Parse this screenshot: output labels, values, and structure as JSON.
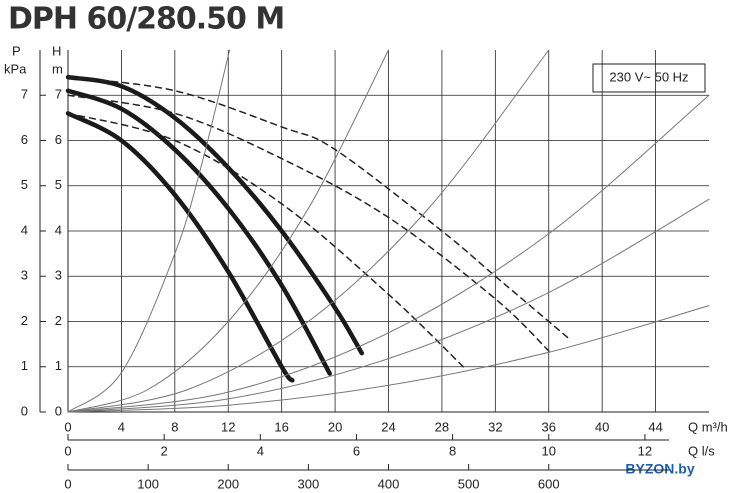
{
  "chart_data": {
    "type": "line",
    "title": "DPH 60/280.50 M",
    "legend_text": "230 V~ 50 Hz",
    "watermark": "BYZON.by",
    "x_label": "Q m³/h",
    "x2_label": "Q l/s",
    "y_label": "H",
    "y_unit": "m",
    "y2_label": "P",
    "y2_unit": "kPa",
    "xlim": [
      0,
      48
    ],
    "xticks": [
      0,
      4,
      8,
      12,
      16,
      20,
      24,
      28,
      32,
      36,
      40,
      44
    ],
    "x2lim": [
      0,
      13.333
    ],
    "x2ticks": [
      0,
      2,
      4,
      6,
      8,
      10,
      12
    ],
    "x3lim": [
      0,
      800
    ],
    "x3ticks": [
      0,
      100,
      200,
      300,
      400,
      500,
      600
    ],
    "ylim": [
      0,
      8
    ],
    "yticks": [
      0,
      1,
      2,
      3,
      4,
      5,
      6,
      7
    ],
    "y2lim": [
      0,
      8
    ],
    "y2ticks": [
      0,
      1,
      2,
      3,
      4,
      5,
      6,
      7
    ],
    "grid": true,
    "series": [
      {
        "style": "solid",
        "color": "#1a1a1a",
        "x": [
          0,
          4,
          8,
          12,
          16,
          16.8
        ],
        "values": [
          6.6,
          6.0,
          4.8,
          3.1,
          1.0,
          0.7
        ]
      },
      {
        "style": "solid",
        "color": "#1a1a1a",
        "x": [
          0,
          4,
          8,
          12,
          16,
          19.6
        ],
        "values": [
          7.1,
          6.7,
          5.8,
          4.5,
          2.8,
          0.85
        ]
      },
      {
        "style": "solid",
        "color": "#1a1a1a",
        "x": [
          0,
          4,
          8,
          12,
          16,
          20,
          22
        ],
        "values": [
          7.4,
          7.2,
          6.5,
          5.4,
          4.0,
          2.3,
          1.3
        ]
      },
      {
        "style": "dashed",
        "color": "#222222",
        "x": [
          0,
          8,
          16,
          24,
          29.6
        ],
        "values": [
          6.6,
          6.0,
          4.6,
          2.6,
          1.0
        ]
      },
      {
        "style": "dashed",
        "color": "#222222",
        "x": [
          0,
          8,
          16,
          24,
          32,
          36
        ],
        "values": [
          7.0,
          6.6,
          5.6,
          4.3,
          2.5,
          1.35
        ]
      },
      {
        "style": "dashed",
        "color": "#222222",
        "x": [
          0,
          8,
          16,
          20,
          28,
          32,
          37.6
        ],
        "values": [
          7.4,
          7.1,
          6.3,
          5.8,
          4.0,
          3.0,
          1.6
        ]
      },
      {
        "style": "thin",
        "color": "#777777",
        "x": [
          0,
          4,
          8,
          10,
          12.1
        ],
        "values": [
          0,
          0.87,
          3.5,
          5.46,
          8.0
        ]
      },
      {
        "style": "thin",
        "color": "#777777",
        "x": [
          0,
          6,
          12,
          18,
          24
        ],
        "values": [
          0,
          0.5,
          2.0,
          4.5,
          8.0
        ]
      },
      {
        "style": "thin",
        "color": "#777777",
        "x": [
          0,
          9,
          18,
          27,
          36
        ],
        "values": [
          0,
          0.5,
          2.0,
          4.5,
          8.0
        ]
      },
      {
        "style": "thin",
        "color": "#777777",
        "x": [
          0,
          12,
          24,
          36,
          48
        ],
        "values": [
          0,
          0.44,
          1.75,
          3.94,
          7.0
        ]
      },
      {
        "style": "thin",
        "color": "#777777",
        "x": [
          0,
          12,
          24,
          36,
          48
        ],
        "values": [
          0,
          0.29,
          1.18,
          2.64,
          4.7
        ]
      },
      {
        "style": "thin",
        "color": "#777777",
        "x": [
          0,
          12,
          24,
          36,
          48
        ],
        "values": [
          0,
          0.15,
          0.59,
          1.32,
          2.35
        ]
      }
    ]
  }
}
